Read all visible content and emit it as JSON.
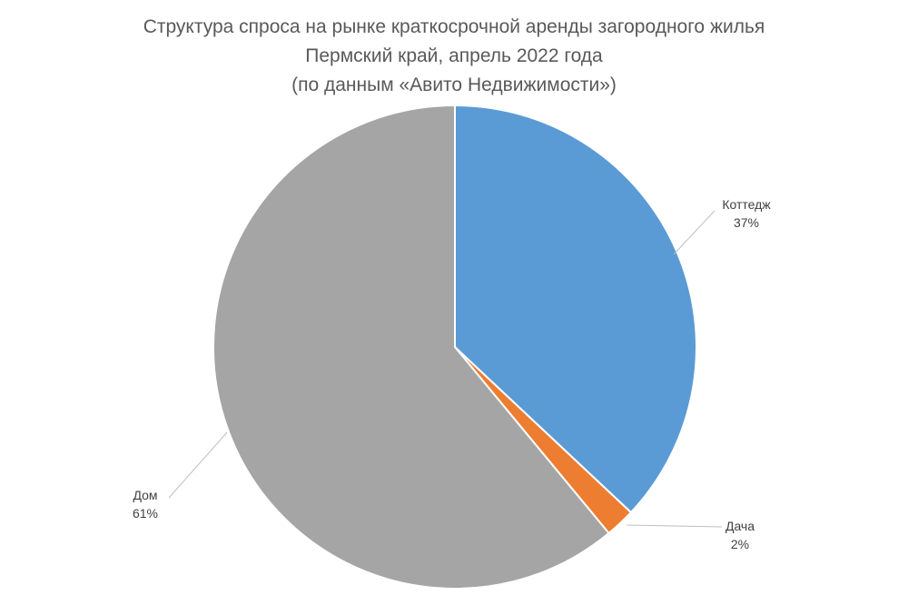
{
  "chart_data": {
    "type": "pie",
    "title": [
      "Структура спроса на рынке краткосрочной аренды загородного жилья",
      "Пермский край, апрель 2022 года",
      "(по данным «Авито Недвижимости»)"
    ],
    "categories": [
      "Коттедж",
      "Дача",
      "Дом"
    ],
    "values": [
      37,
      2,
      61
    ],
    "value_labels": [
      "37%",
      "2%",
      "61%"
    ],
    "colors": [
      "#5b9bd5",
      "#ed7d31",
      "#a5a5a5"
    ],
    "start_angle_deg": 0,
    "direction": "clockwise",
    "legend": "none",
    "labels_position": "outside-with-leader-lines"
  }
}
